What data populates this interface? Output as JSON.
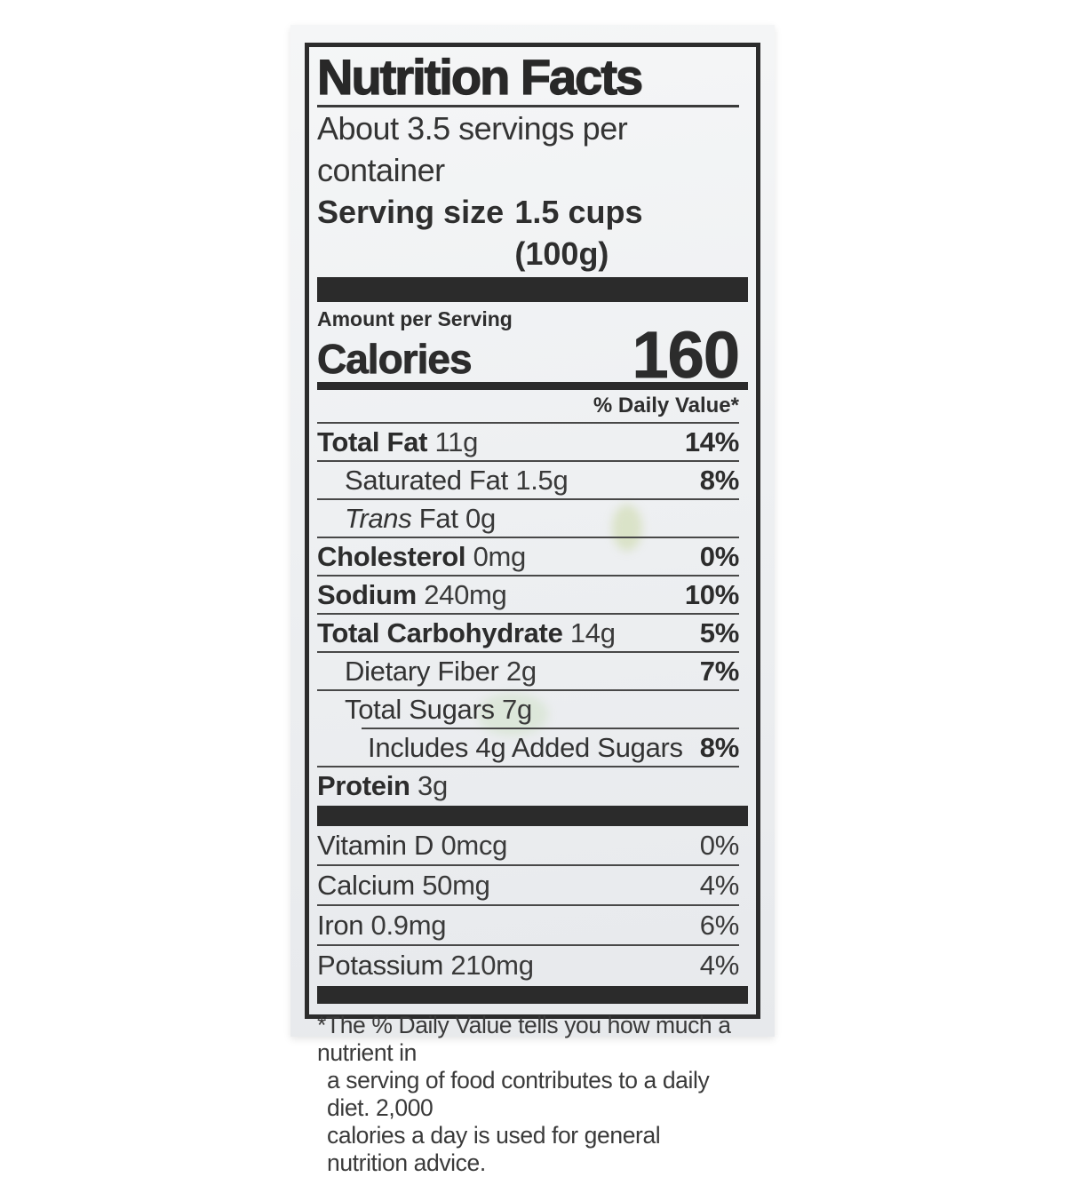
{
  "label": {
    "title": "Nutrition Facts",
    "servings_per_container": "About 3.5 servings per container",
    "serving_size_label": "Serving size",
    "serving_size_value": "1.5 cups (100g)",
    "amount_per_serving": "Amount per Serving",
    "calories_label": "Calories",
    "calories_value": "160",
    "daily_value_header": "% Daily Value*"
  },
  "nutrients": [
    {
      "name": "Total Fat",
      "amount": "11g",
      "dv": "14%"
    },
    {
      "name": "Saturated Fat",
      "amount": "1.5g",
      "dv": "8%"
    },
    {
      "name_italic": "Trans",
      "name": "Fat",
      "amount": "0g",
      "dv": ""
    },
    {
      "name": "Cholesterol",
      "amount": "0mg",
      "dv": "0%"
    },
    {
      "name": "Sodium",
      "amount": "240mg",
      "dv": "10%"
    },
    {
      "name": "Total Carbohydrate",
      "amount": "14g",
      "dv": "5%"
    },
    {
      "name": "Dietary Fiber",
      "amount": "2g",
      "dv": "7%"
    },
    {
      "name": "Total Sugars",
      "amount": "7g",
      "dv": ""
    },
    {
      "name": "Includes 4g Added Sugars",
      "amount": "",
      "dv": "8%"
    },
    {
      "name": "Protein",
      "amount": "3g",
      "dv": ""
    }
  ],
  "vitamins": [
    {
      "name": "Vitamin D",
      "amount": "0mcg",
      "dv": "0%"
    },
    {
      "name": "Calcium",
      "amount": "50mg",
      "dv": "4%"
    },
    {
      "name": "Iron",
      "amount": "0.9mg",
      "dv": "6%"
    },
    {
      "name": "Potassium",
      "amount": "210mg",
      "dv": "4%"
    }
  ],
  "footnote_lines": [
    "*The % Daily Value tells you how much a nutrient in",
    "a serving of food contributes to a daily diet. 2,000",
    "calories a day is used for general nutrition advice."
  ],
  "colors": {
    "ink": "#2c2c2c",
    "paper": "#edeff1"
  }
}
